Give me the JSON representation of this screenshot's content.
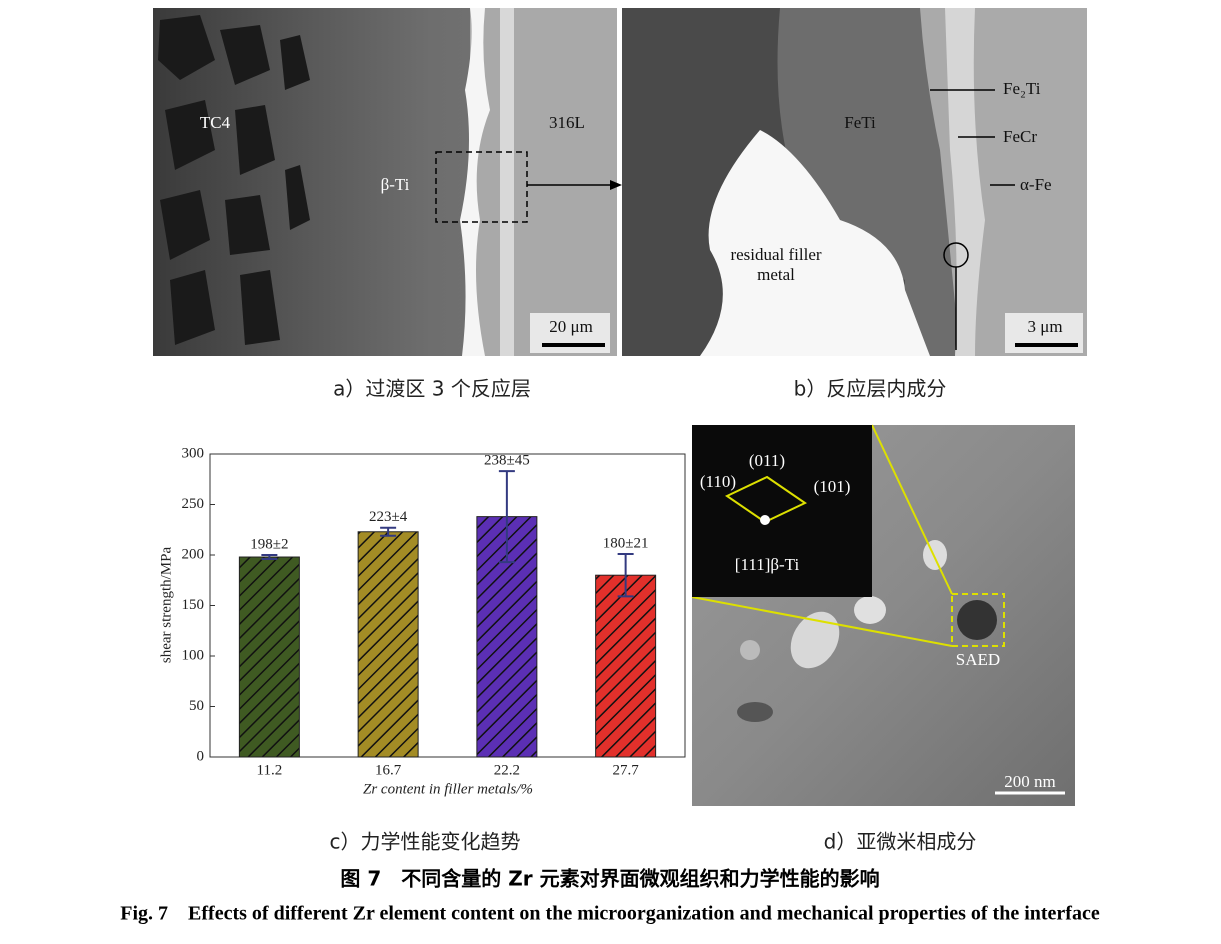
{
  "panel_a": {
    "caption": "a）过渡区 3 个反应层",
    "labels": [
      "TC4",
      "β-Ti",
      "316L"
    ],
    "scale_bar": "20 μm"
  },
  "panel_b": {
    "caption": "b）反应层内成分",
    "labels": [
      "FeTi",
      "residual filler",
      "metal",
      "Fe₂Ti",
      "FeCr",
      "α-Fe"
    ],
    "scale_bar": "3 μm"
  },
  "panel_c": {
    "caption": "c）力学性能变化趋势"
  },
  "panel_d": {
    "caption": "d）亚微米相成分",
    "labels": [
      "(011)",
      "(110)",
      "(101)",
      "[111]β-Ti",
      "SAED"
    ],
    "scale_bar": "200 nm"
  },
  "chart_data": {
    "type": "bar",
    "categories": [
      "11.2",
      "16.7",
      "22.2",
      "27.7"
    ],
    "values": [
      198,
      223,
      238,
      180
    ],
    "errors": [
      2,
      4,
      45,
      21
    ],
    "value_labels": [
      "198±2",
      "223±4",
      "238±45",
      "180±21"
    ],
    "colors": [
      "#3f5a22",
      "#a38c25",
      "#5b2fb4",
      "#e2302b"
    ],
    "xlabel": "Zr content in filler metals/%",
    "ylabel": "shear strength/MPa",
    "ylim": [
      0,
      300
    ],
    "yticks": [
      0,
      50,
      100,
      150,
      200,
      250,
      300
    ]
  },
  "figure": {
    "title_cn": "图 7　不同含量的 Zr 元素对界面微观组织和力学性能的影响",
    "title_en": "Fig. 7　Effects of different Zr element content on the microorganization and mechanical properties of the interface"
  }
}
